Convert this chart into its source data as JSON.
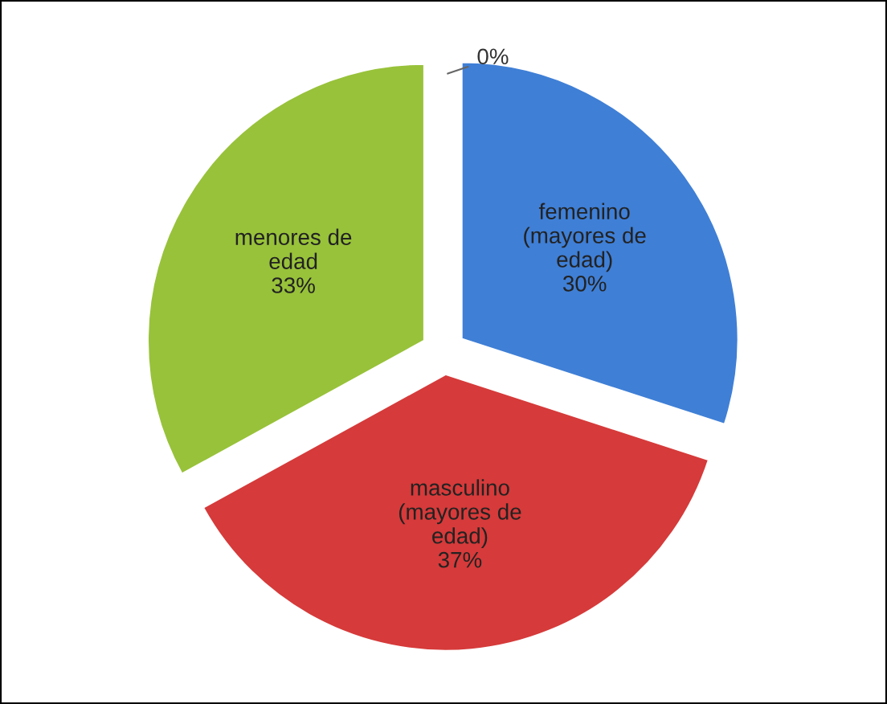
{
  "chart_data": {
    "type": "pie",
    "categories": [
      "femenino\n(mayores de\nedad)",
      "masculino\n(mayores de\nedad)",
      "menores de\nedad",
      null
    ],
    "values": [
      30,
      37,
      33,
      0
    ],
    "value_labels": [
      "30%",
      "37%",
      "33%",
      "0%"
    ],
    "colors": [
      "#3f7fd6",
      "#d63a3a",
      "#98c23a",
      "#7a5aa8"
    ],
    "legend": false
  }
}
